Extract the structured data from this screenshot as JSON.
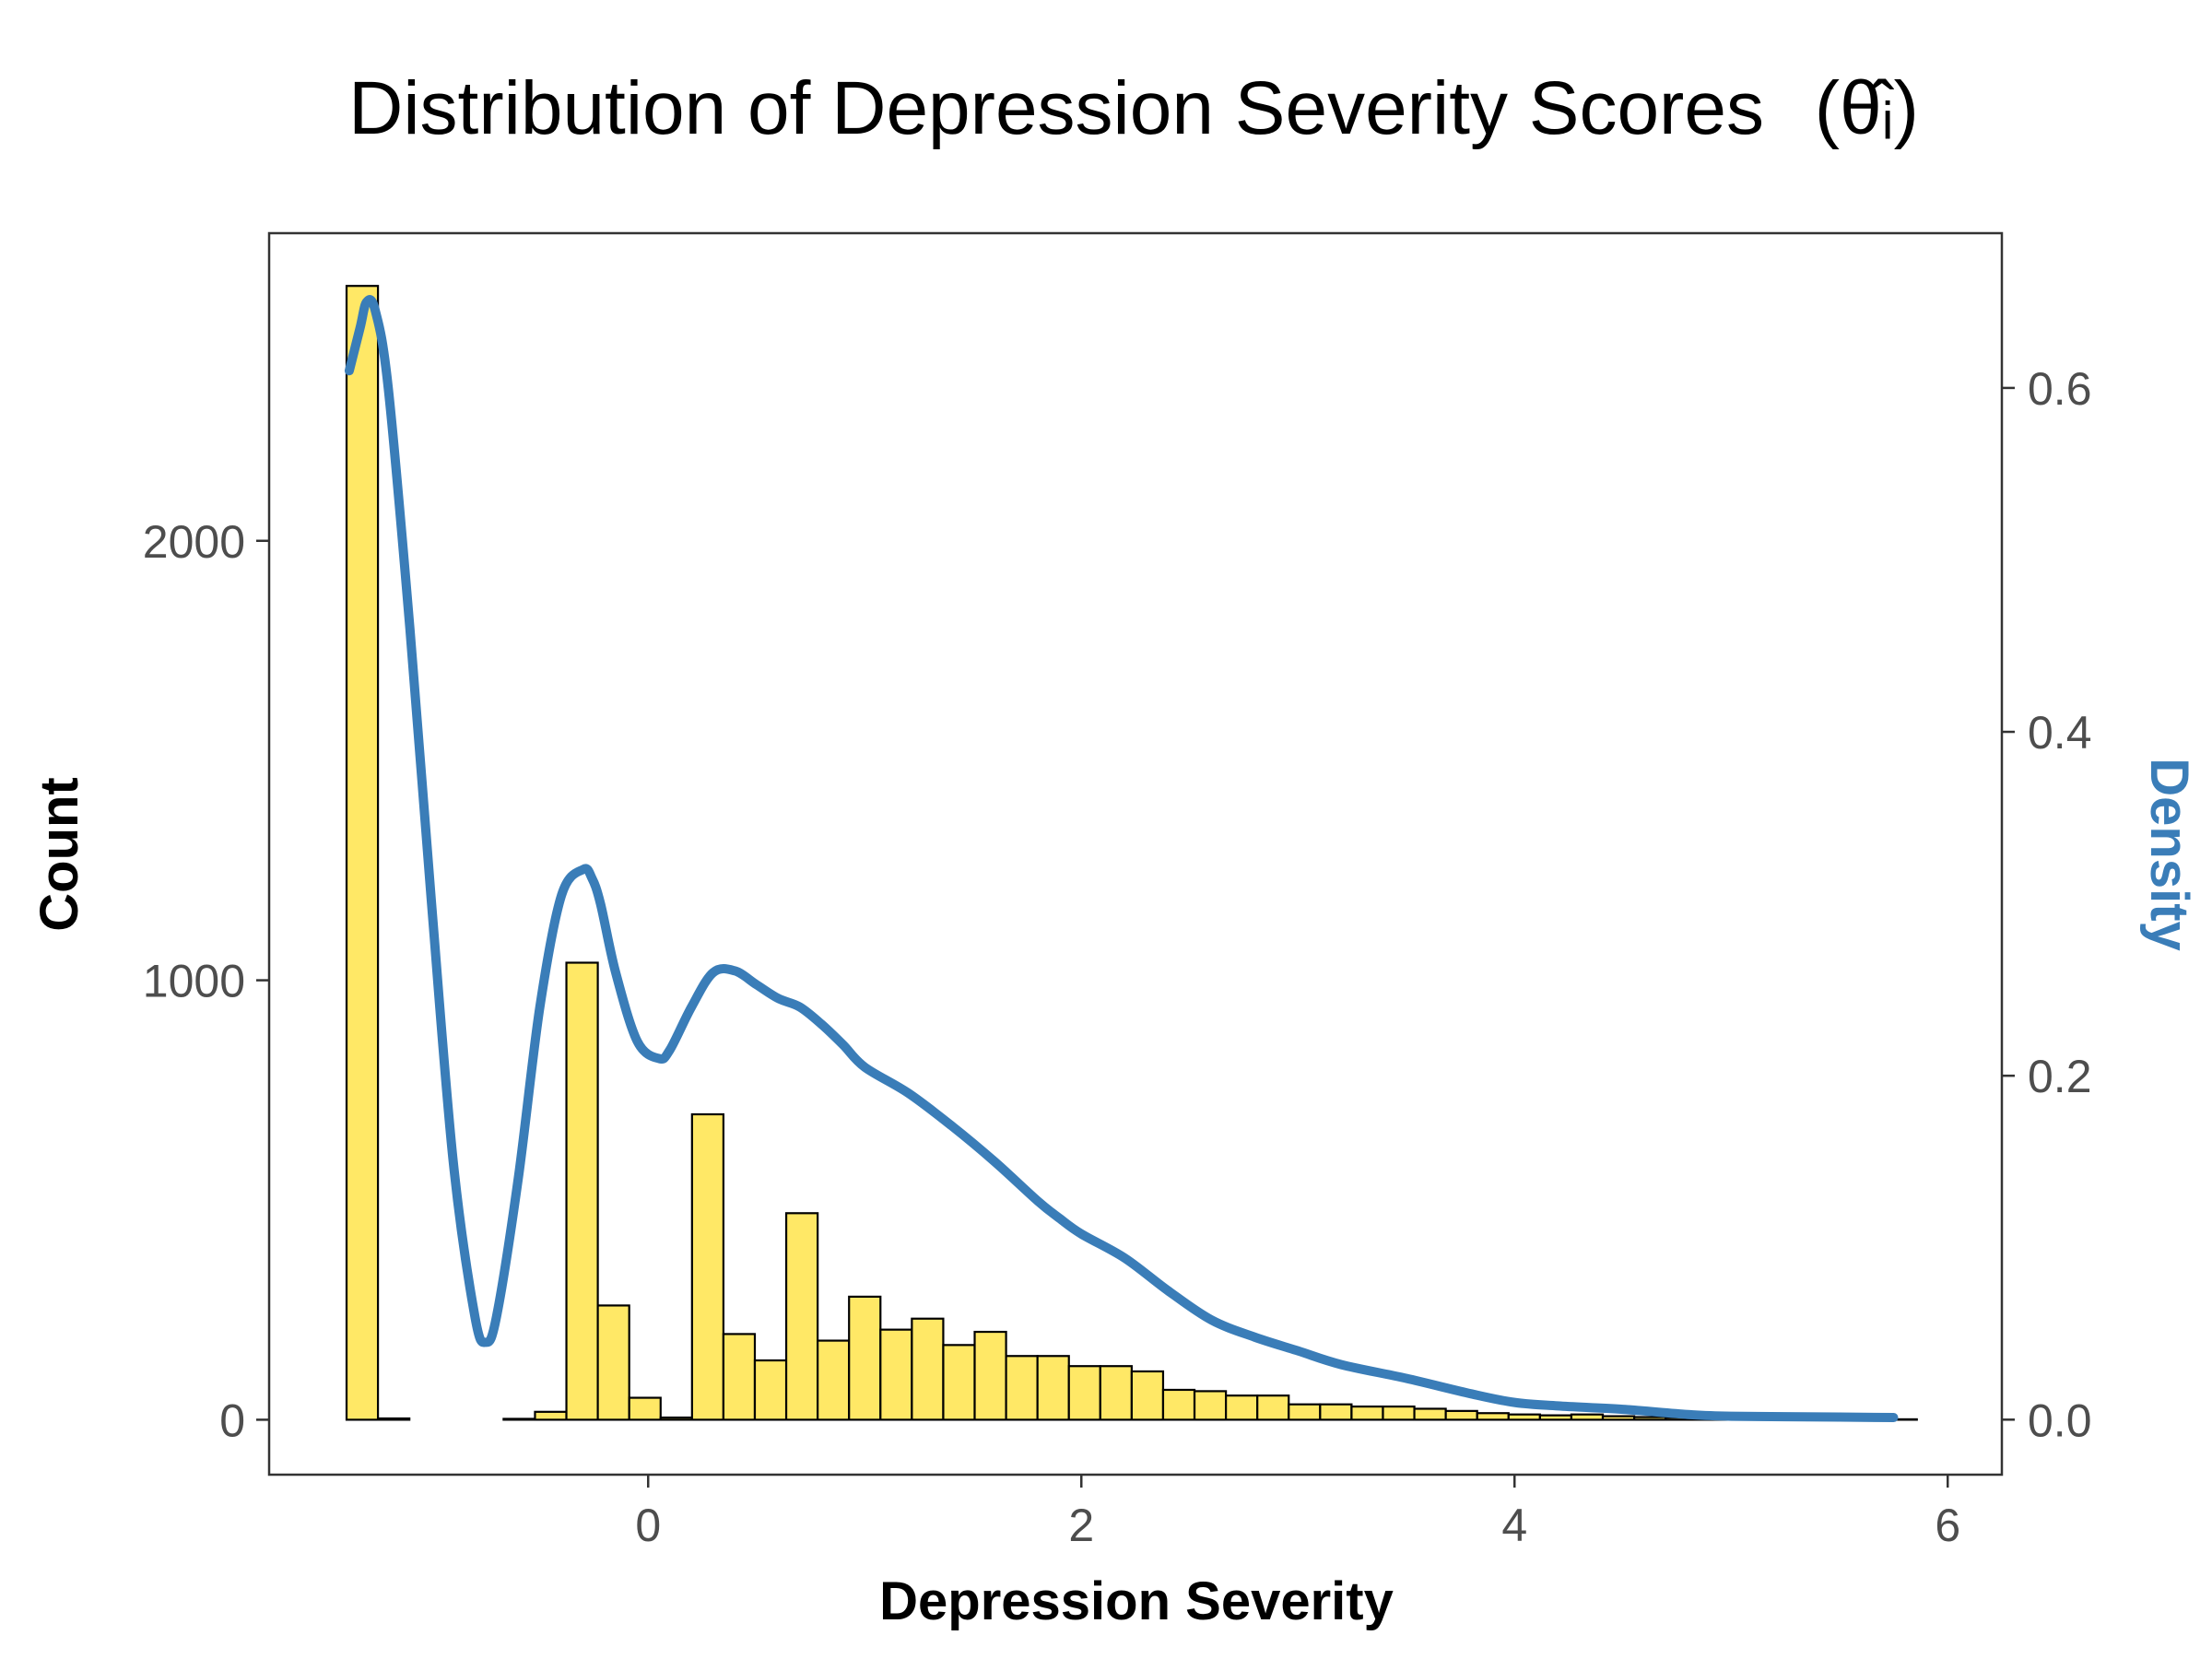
{
  "chart_data": {
    "type": "bar",
    "title": "Distribution of Depression Severity Scores",
    "title_symbol": "(θ̂ᵢ)",
    "xlabel": "Depression Severity",
    "ylabel": "Count",
    "y2label": "Density",
    "xlim": [
      -1.75,
      6.25
    ],
    "ylim": [
      -125,
      2700
    ],
    "y2lim": [
      -0.032,
      0.69
    ],
    "x_ticks": [
      0,
      2,
      4,
      6
    ],
    "y_ticks": [
      0,
      1000,
      2000
    ],
    "y2_ticks": [
      0.0,
      0.2,
      0.4,
      0.6
    ],
    "y2_tick_labels": [
      "0.0",
      "0.2",
      "0.4",
      "0.6"
    ],
    "grid": false,
    "histogram": {
      "bin_width": 0.145,
      "bin_centers": [
        -1.32,
        -1.175,
        -1.03,
        -0.885,
        -0.74,
        -0.595,
        -0.45,
        -0.305,
        -0.16,
        -0.015,
        0.13,
        0.275,
        0.42,
        0.565,
        0.71,
        0.855,
        1.0,
        1.145,
        1.29,
        1.435,
        1.58,
        1.725,
        1.87,
        2.015,
        2.16,
        2.305,
        2.45,
        2.595,
        2.74,
        2.885,
        3.03,
        3.175,
        3.32,
        3.465,
        3.61,
        3.755,
        3.9,
        4.045,
        4.19,
        4.335,
        4.48,
        4.625,
        4.77,
        4.915,
        5.06,
        5.205,
        5.35,
        5.495,
        5.64,
        5.785
      ],
      "counts": [
        2580,
        3,
        0,
        0,
        0,
        2,
        18,
        1040,
        260,
        50,
        5,
        695,
        195,
        135,
        470,
        180,
        280,
        205,
        230,
        170,
        200,
        145,
        145,
        122,
        122,
        110,
        68,
        65,
        55,
        55,
        35,
        35,
        30,
        30,
        25,
        20,
        15,
        12,
        10,
        12,
        8,
        6,
        5,
        3,
        2,
        2,
        1,
        1,
        1,
        1
      ],
      "fill_color": "#ffe866",
      "stroke_color": "#000000"
    },
    "density": {
      "name": "Density",
      "color": "#3a7db8",
      "x": [
        -1.38,
        -1.33,
        -1.3,
        -1.26,
        -1.2,
        -1.1,
        -1.0,
        -0.9,
        -0.8,
        -0.75,
        -0.7,
        -0.6,
        -0.5,
        -0.4,
        -0.3,
        -0.26,
        -0.22,
        -0.15,
        -0.05,
        0.05,
        0.1,
        0.2,
        0.3,
        0.4,
        0.5,
        0.6,
        0.7,
        0.8,
        0.9,
        1.0,
        1.2,
        1.4,
        1.6,
        1.8,
        1.9,
        2.0,
        2.2,
        2.4,
        2.6,
        2.8,
        3.0,
        3.2,
        3.5,
        3.8,
        4.0,
        4.2,
        4.5,
        4.8,
        5.0,
        5.5,
        5.75
      ],
      "y": [
        0.61,
        0.635,
        0.65,
        0.645,
        0.6,
        0.46,
        0.3,
        0.15,
        0.06,
        0.045,
        0.06,
        0.14,
        0.24,
        0.305,
        0.32,
        0.315,
        0.3,
        0.26,
        0.22,
        0.21,
        0.215,
        0.24,
        0.26,
        0.261,
        0.253,
        0.245,
        0.24,
        0.23,
        0.218,
        0.205,
        0.19,
        0.171,
        0.15,
        0.127,
        0.117,
        0.108,
        0.094,
        0.075,
        0.058,
        0.048,
        0.04,
        0.032,
        0.024,
        0.015,
        0.01,
        0.008,
        0.006,
        0.003,
        0.002,
        0.0015,
        0.0012
      ]
    }
  }
}
